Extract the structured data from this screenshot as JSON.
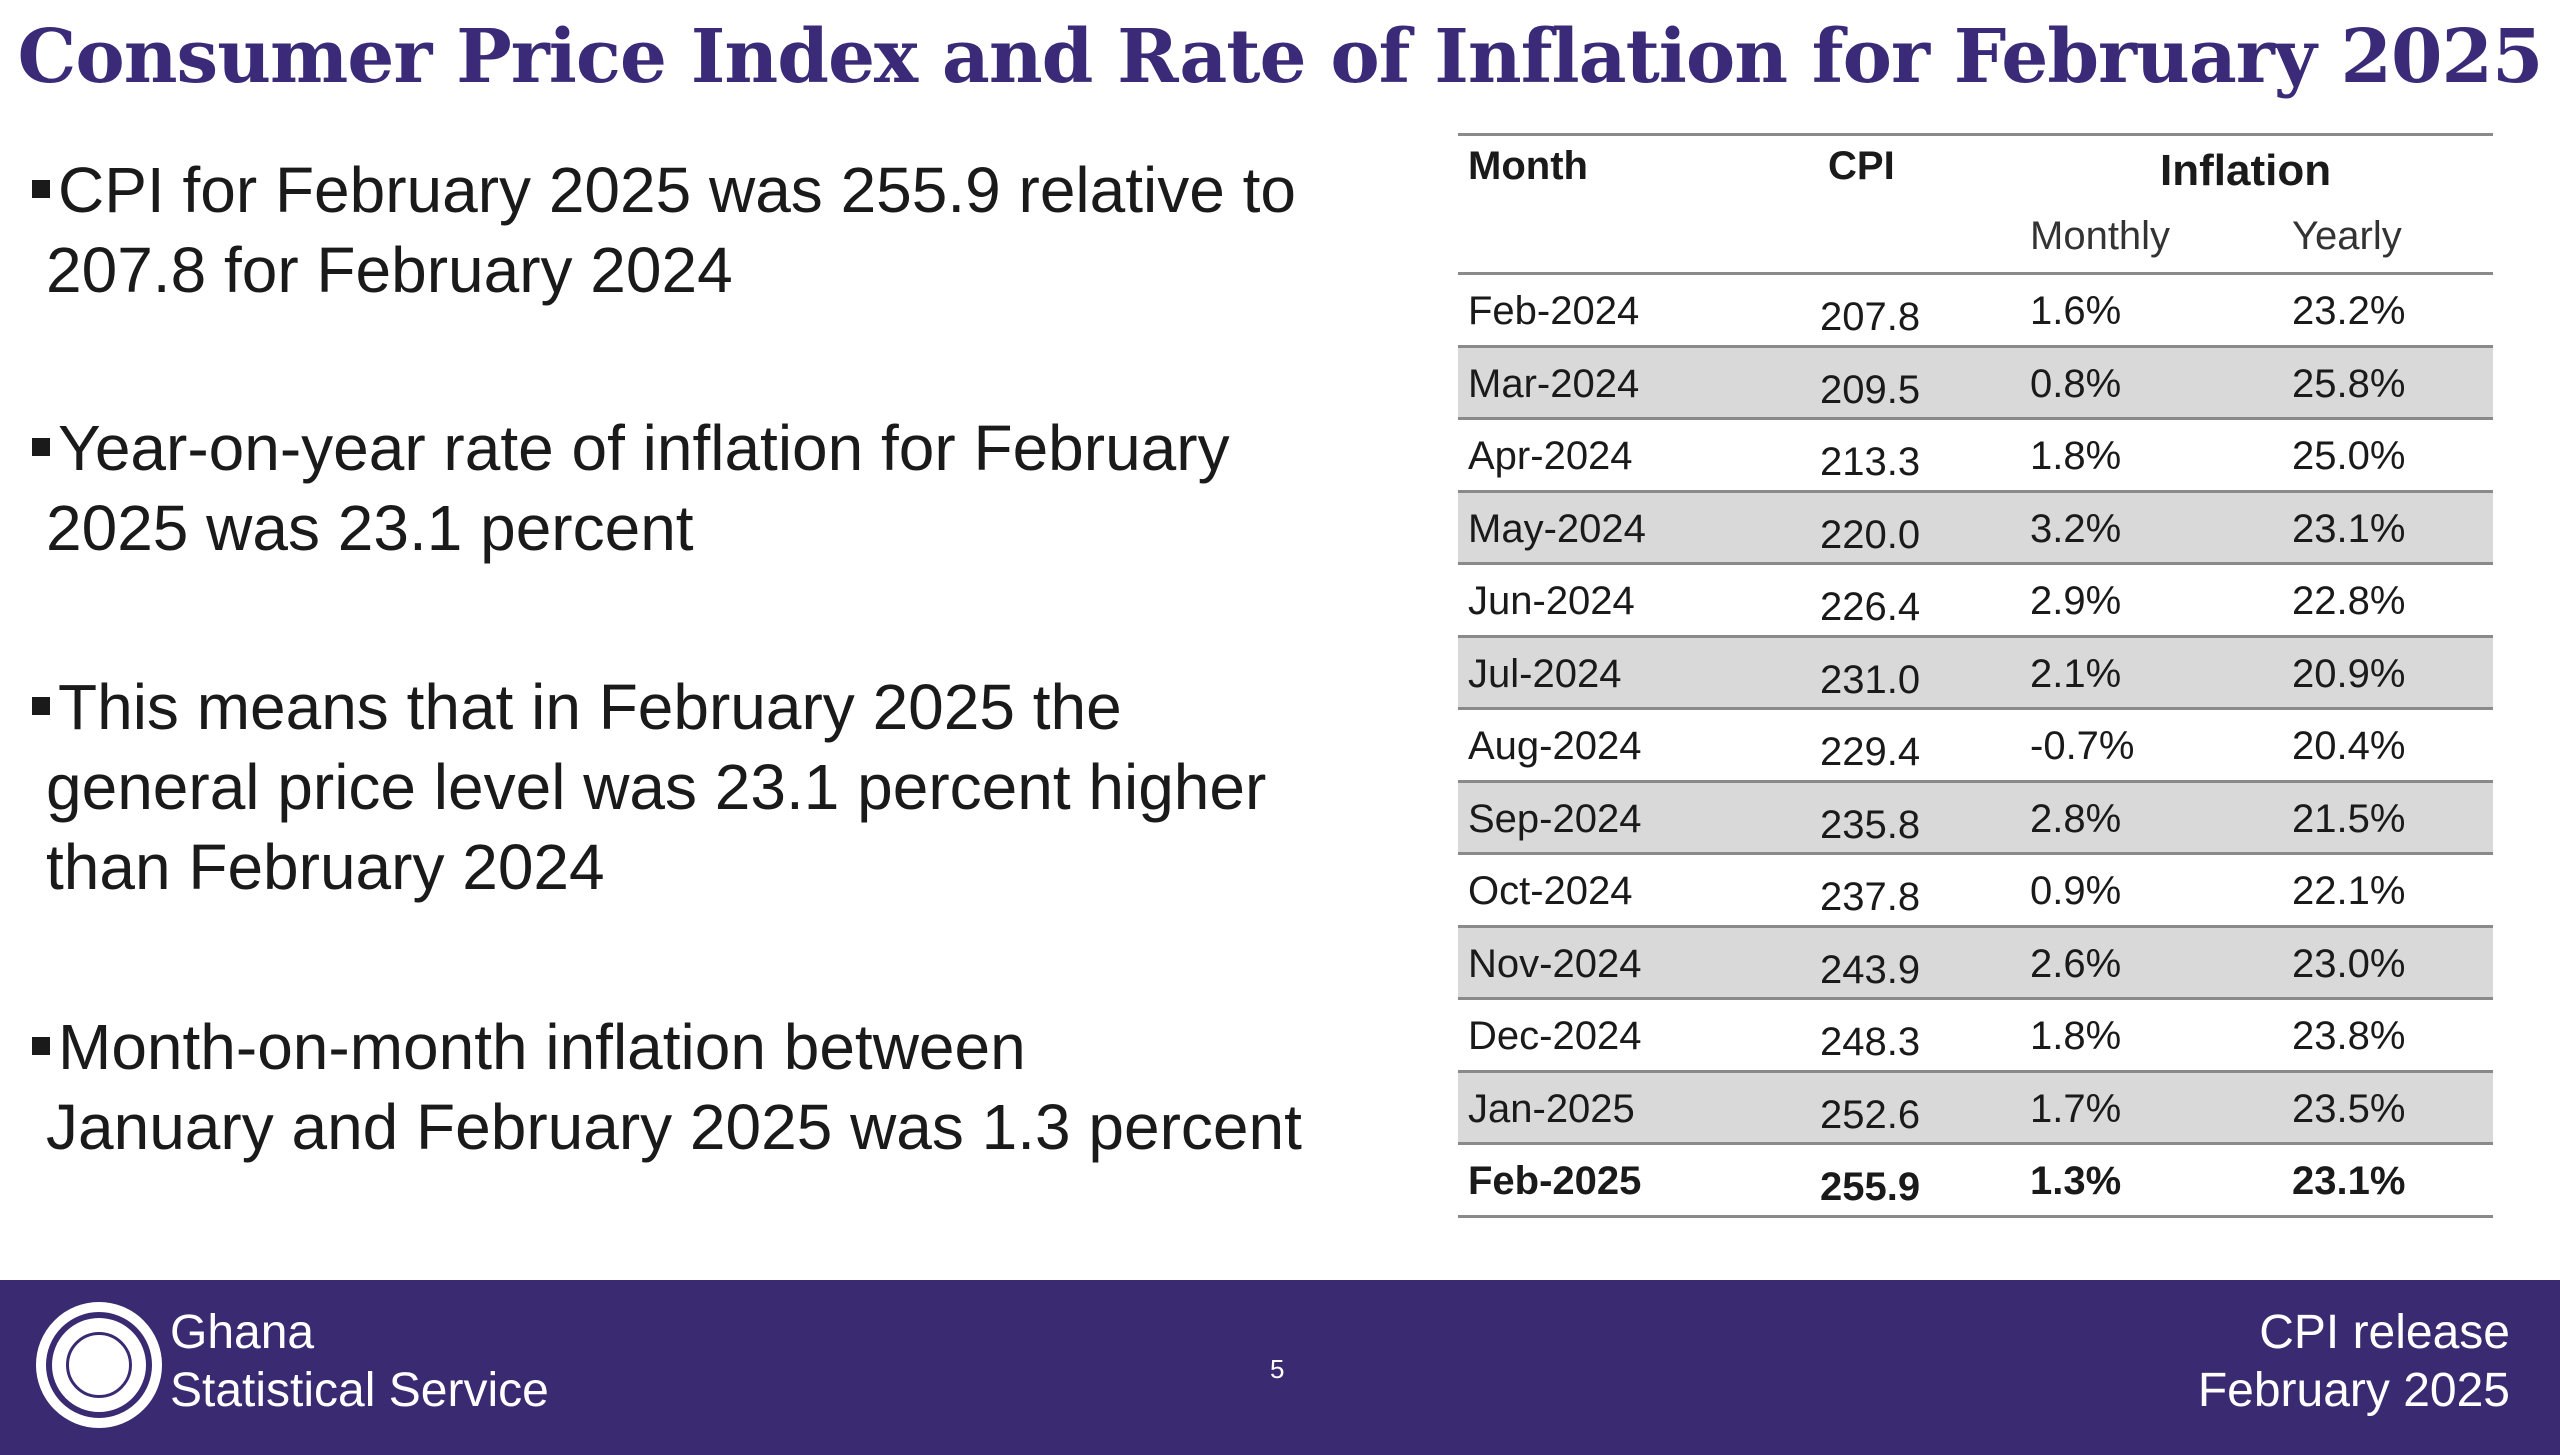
{
  "title": "Consumer Price Index and Rate of Inflation for February 2025",
  "bullets": [
    {
      "line1": "CPI for February 2025 was 255.9 relative to",
      "line2": "207.8 for February 2024"
    },
    {
      "line1": "Year-on-year rate of inflation for February",
      "line2": "2025 was 23.1 percent"
    },
    {
      "line1": "This means that in February 2025 the",
      "line2": "general price level was 23.1 percent higher",
      "line3": "than February 2024"
    },
    {
      "line1": "Month-on-month inflation between",
      "line2": "January and February 2025 was 1.3 percent"
    }
  ],
  "table": {
    "headers": {
      "month": "Month",
      "cpi": "CPI",
      "inflation": "Inflation",
      "monthly": "Monthly",
      "yearly": "Yearly"
    },
    "rows": [
      {
        "month": "Feb-2024",
        "cpi": "207.8",
        "monthly": "1.6%",
        "yearly": "23.2%"
      },
      {
        "month": "Mar-2024",
        "cpi": "209.5",
        "monthly": "0.8%",
        "yearly": "25.8%"
      },
      {
        "month": "Apr-2024",
        "cpi": "213.3",
        "monthly": "1.8%",
        "yearly": "25.0%"
      },
      {
        "month": "May-2024",
        "cpi": "220.0",
        "monthly": "3.2%",
        "yearly": "23.1%"
      },
      {
        "month": "Jun-2024",
        "cpi": "226.4",
        "monthly": "2.9%",
        "yearly": "22.8%"
      },
      {
        "month": "Jul-2024",
        "cpi": "231.0",
        "monthly": "2.1%",
        "yearly": "20.9%"
      },
      {
        "month": "Aug-2024",
        "cpi": "229.4",
        "monthly": "-0.7%",
        "yearly": "20.4%"
      },
      {
        "month": "Sep-2024",
        "cpi": "235.8",
        "monthly": "2.8%",
        "yearly": "21.5%"
      },
      {
        "month": "Oct-2024",
        "cpi": "237.8",
        "monthly": "0.9%",
        "yearly": "22.1%"
      },
      {
        "month": "Nov-2024",
        "cpi": "243.9",
        "monthly": "2.6%",
        "yearly": "23.0%"
      },
      {
        "month": "Dec-2024",
        "cpi": "248.3",
        "monthly": "1.8%",
        "yearly": "23.8%"
      },
      {
        "month": "Jan-2025",
        "cpi": "252.6",
        "monthly": "1.7%",
        "yearly": "23.5%"
      },
      {
        "month": "Feb-2025",
        "cpi": "255.9",
        "monthly": "1.3%",
        "yearly": "23.1%"
      }
    ]
  },
  "footer": {
    "org_line1": "Ghana",
    "org_line2": "Statistical Service",
    "page_number": "5",
    "release_line1": "CPI release",
    "release_line2": "February  2025",
    "logo_text": "STATISTICAL SERVICE GHANA"
  },
  "colors": {
    "title": "#3b2a78",
    "footer_bg": "#3a2a72",
    "row_shade": "#d9d9d9"
  }
}
